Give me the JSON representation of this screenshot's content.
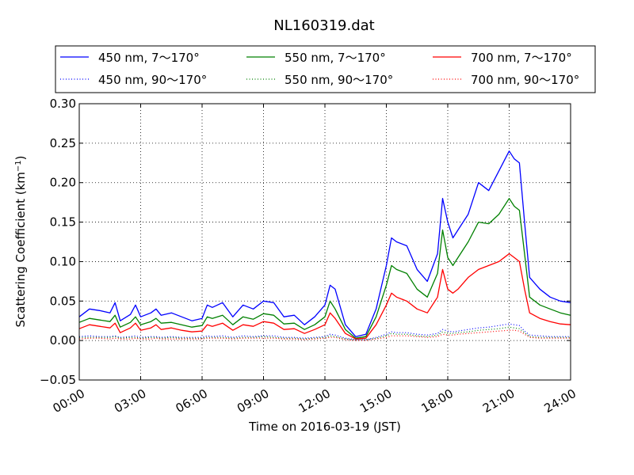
{
  "chart_data": {
    "type": "line",
    "title": "NL160319.dat",
    "xlabel": "Time on 2016-03-19 (JST)",
    "ylabel": "Scattering Coefficient (km",
    "ylabel_sup": "−1",
    "ylabel_suffix": ")",
    "x_unit": "hours since 2016-03-19 00:00 JST",
    "xlim": [
      0,
      24
    ],
    "ylim": [
      -0.05,
      0.3
    ],
    "x_ticks": [
      {
        "x": 0,
        "label": "00:00"
      },
      {
        "x": 3,
        "label": "03:00"
      },
      {
        "x": 6,
        "label": "06:00"
      },
      {
        "x": 9,
        "label": "09:00"
      },
      {
        "x": 12,
        "label": "12:00"
      },
      {
        "x": 15,
        "label": "15:00"
      },
      {
        "x": 18,
        "label": "18:00"
      },
      {
        "x": 21,
        "label": "21:00"
      },
      {
        "x": 24,
        "label": "24:00"
      }
    ],
    "y_ticks": [
      {
        "y": 0.3,
        "label": "0.30"
      },
      {
        "y": 0.25,
        "label": "0.25"
      },
      {
        "y": 0.2,
        "label": "0.20"
      },
      {
        "y": 0.15,
        "label": "0.15"
      },
      {
        "y": 0.1,
        "label": "0.10"
      },
      {
        "y": 0.05,
        "label": "0.05"
      },
      {
        "y": 0.0,
        "label": "0.00"
      },
      {
        "y": -0.05,
        "label": "−0.05"
      }
    ],
    "grid": true,
    "legend_placement": "top, above plot, 3 columns",
    "x": [
      0,
      0.5,
      1,
      1.5,
      1.75,
      2,
      2.5,
      2.75,
      3,
      3.5,
      3.75,
      4,
      4.5,
      5,
      5.5,
      6,
      6.25,
      6.5,
      7,
      7.5,
      8,
      8.5,
      9,
      9.5,
      10,
      10.5,
      11,
      11.5,
      12,
      12.25,
      12.5,
      13,
      13.5,
      14,
      14.5,
      15,
      15.25,
      15.5,
      16,
      16.5,
      17,
      17.5,
      17.75,
      18,
      18.25,
      18.5,
      19,
      19.5,
      20,
      20.5,
      21,
      21.25,
      21.5,
      21.75,
      22,
      22.5,
      23,
      23.5,
      24
    ],
    "series": [
      {
        "name": "450 nm, 7～170°",
        "color": "#0000ff",
        "style": "solid",
        "values": [
          0.03,
          0.04,
          0.038,
          0.035,
          0.048,
          0.025,
          0.033,
          0.045,
          0.03,
          0.035,
          0.04,
          0.032,
          0.035,
          0.03,
          0.025,
          0.028,
          0.045,
          0.042,
          0.048,
          0.03,
          0.045,
          0.04,
          0.05,
          0.048,
          0.03,
          0.032,
          0.02,
          0.03,
          0.045,
          0.07,
          0.065,
          0.02,
          0.005,
          0.008,
          0.04,
          0.095,
          0.13,
          0.125,
          0.12,
          0.09,
          0.075,
          0.11,
          0.18,
          0.15,
          0.13,
          0.14,
          0.16,
          0.2,
          0.19,
          0.215,
          0.24,
          0.23,
          0.225,
          0.15,
          0.08,
          0.065,
          0.055,
          0.05,
          0.048
        ]
      },
      {
        "name": "550 nm, 7～170°",
        "color": "#008000",
        "style": "solid",
        "values": [
          0.023,
          0.028,
          0.026,
          0.024,
          0.032,
          0.017,
          0.023,
          0.03,
          0.02,
          0.024,
          0.028,
          0.022,
          0.023,
          0.02,
          0.017,
          0.019,
          0.03,
          0.028,
          0.032,
          0.02,
          0.03,
          0.027,
          0.034,
          0.032,
          0.021,
          0.022,
          0.014,
          0.02,
          0.03,
          0.05,
          0.04,
          0.014,
          0.003,
          0.005,
          0.03,
          0.07,
          0.095,
          0.09,
          0.085,
          0.065,
          0.055,
          0.085,
          0.14,
          0.105,
          0.095,
          0.105,
          0.125,
          0.15,
          0.148,
          0.16,
          0.18,
          0.17,
          0.165,
          0.11,
          0.055,
          0.045,
          0.04,
          0.035,
          0.032
        ]
      },
      {
        "name": "700 nm, 7～170°",
        "color": "#ff0000",
        "style": "solid",
        "values": [
          0.015,
          0.02,
          0.018,
          0.016,
          0.022,
          0.01,
          0.016,
          0.022,
          0.013,
          0.016,
          0.02,
          0.014,
          0.016,
          0.013,
          0.011,
          0.012,
          0.02,
          0.018,
          0.022,
          0.013,
          0.02,
          0.018,
          0.024,
          0.022,
          0.014,
          0.015,
          0.009,
          0.014,
          0.02,
          0.035,
          0.028,
          0.009,
          0.002,
          0.003,
          0.02,
          0.045,
          0.06,
          0.055,
          0.05,
          0.04,
          0.035,
          0.055,
          0.09,
          0.065,
          0.06,
          0.065,
          0.08,
          0.09,
          0.095,
          0.1,
          0.11,
          0.105,
          0.1,
          0.065,
          0.035,
          0.028,
          0.024,
          0.021,
          0.02
        ]
      },
      {
        "name": "450 nm, 90～170°",
        "color": "#0000ff",
        "style": "dotted",
        "values": [
          0.005,
          0.006,
          0.005,
          0.005,
          0.006,
          0.004,
          0.005,
          0.006,
          0.004,
          0.005,
          0.005,
          0.004,
          0.005,
          0.004,
          0.004,
          0.004,
          0.006,
          0.005,
          0.006,
          0.004,
          0.006,
          0.005,
          0.006,
          0.006,
          0.004,
          0.004,
          0.003,
          0.004,
          0.005,
          0.008,
          0.007,
          0.003,
          0.001,
          0.001,
          0.004,
          0.008,
          0.011,
          0.01,
          0.01,
          0.008,
          0.007,
          0.009,
          0.014,
          0.012,
          0.011,
          0.012,
          0.014,
          0.016,
          0.017,
          0.019,
          0.021,
          0.02,
          0.019,
          0.012,
          0.007,
          0.006,
          0.005,
          0.005,
          0.005
        ]
      },
      {
        "name": "550 nm, 90～170°",
        "color": "#008000",
        "style": "dotted",
        "values": [
          0.004,
          0.004,
          0.004,
          0.004,
          0.005,
          0.003,
          0.004,
          0.004,
          0.003,
          0.004,
          0.004,
          0.003,
          0.004,
          0.003,
          0.003,
          0.003,
          0.004,
          0.004,
          0.004,
          0.003,
          0.004,
          0.004,
          0.005,
          0.004,
          0.003,
          0.003,
          0.002,
          0.003,
          0.004,
          0.006,
          0.005,
          0.002,
          0.001,
          0.001,
          0.003,
          0.006,
          0.009,
          0.008,
          0.008,
          0.006,
          0.005,
          0.007,
          0.011,
          0.009,
          0.009,
          0.01,
          0.011,
          0.013,
          0.014,
          0.015,
          0.017,
          0.016,
          0.015,
          0.01,
          0.005,
          0.004,
          0.004,
          0.004,
          0.004
        ]
      },
      {
        "name": "700 nm, 90～170°",
        "color": "#ff0000",
        "style": "dotted",
        "values": [
          0.002,
          0.003,
          0.003,
          0.002,
          0.003,
          0.002,
          0.002,
          0.003,
          0.002,
          0.002,
          0.003,
          0.002,
          0.002,
          0.002,
          0.002,
          0.002,
          0.003,
          0.003,
          0.003,
          0.002,
          0.003,
          0.003,
          0.003,
          0.003,
          0.002,
          0.002,
          0.001,
          0.002,
          0.003,
          0.004,
          0.004,
          0.001,
          0.0,
          0.0,
          0.002,
          0.004,
          0.006,
          0.006,
          0.006,
          0.005,
          0.004,
          0.005,
          0.008,
          0.007,
          0.007,
          0.008,
          0.009,
          0.01,
          0.011,
          0.012,
          0.013,
          0.013,
          0.012,
          0.008,
          0.004,
          0.003,
          0.003,
          0.003,
          0.003
        ]
      }
    ]
  }
}
